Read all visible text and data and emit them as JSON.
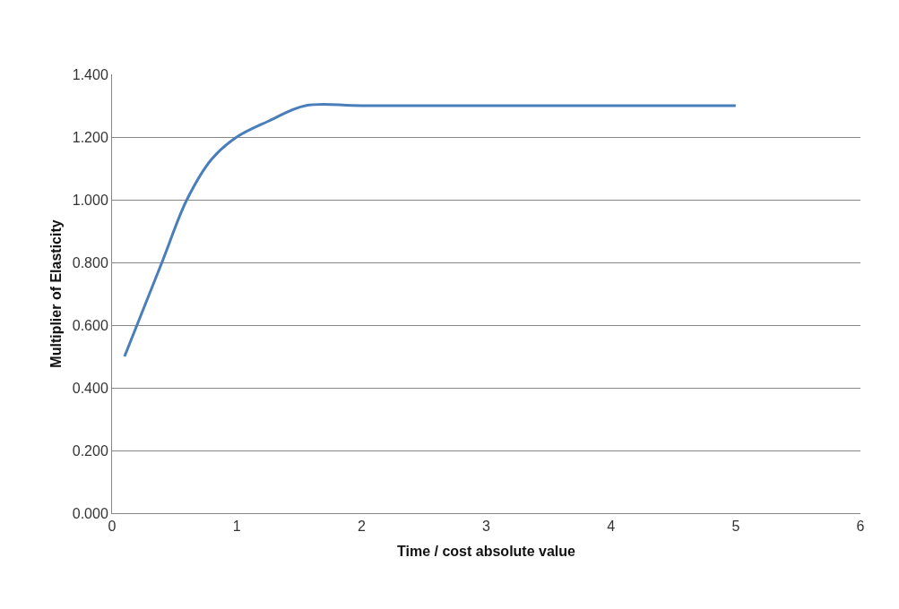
{
  "chart_data": {
    "type": "line",
    "xlabel": "Time / cost absolute value",
    "ylabel": "Multiplier of Elasticity",
    "x": [
      0.1,
      0.4,
      0.6,
      0.8,
      1.0,
      1.25,
      1.55,
      2,
      3,
      4,
      5
    ],
    "series": [
      {
        "color": "#4a7ebb",
        "values": [
          0.5,
          0.8,
          1.0,
          1.13,
          1.2,
          1.25,
          1.3,
          1.3,
          1.3,
          1.3,
          1.3
        ]
      }
    ],
    "xlim": [
      0,
      6
    ],
    "xticks": [
      0,
      1,
      2,
      3,
      4,
      5,
      6
    ],
    "ylim": [
      0,
      1.4
    ],
    "yticks": [
      {
        "value": 0,
        "label": "0.000"
      },
      {
        "value": 0.2,
        "label": "0.200"
      },
      {
        "value": 0.4,
        "label": "0.400"
      },
      {
        "value": 0.6,
        "label": "0.600"
      },
      {
        "value": 0.8,
        "label": "0.800"
      },
      {
        "value": 1.0,
        "label": "1.000"
      },
      {
        "value": 1.2,
        "label": "1.200"
      },
      {
        "value": 1.4,
        "label": "1.400"
      }
    ],
    "grid": "y",
    "marker": "none",
    "line_style": "solid"
  }
}
